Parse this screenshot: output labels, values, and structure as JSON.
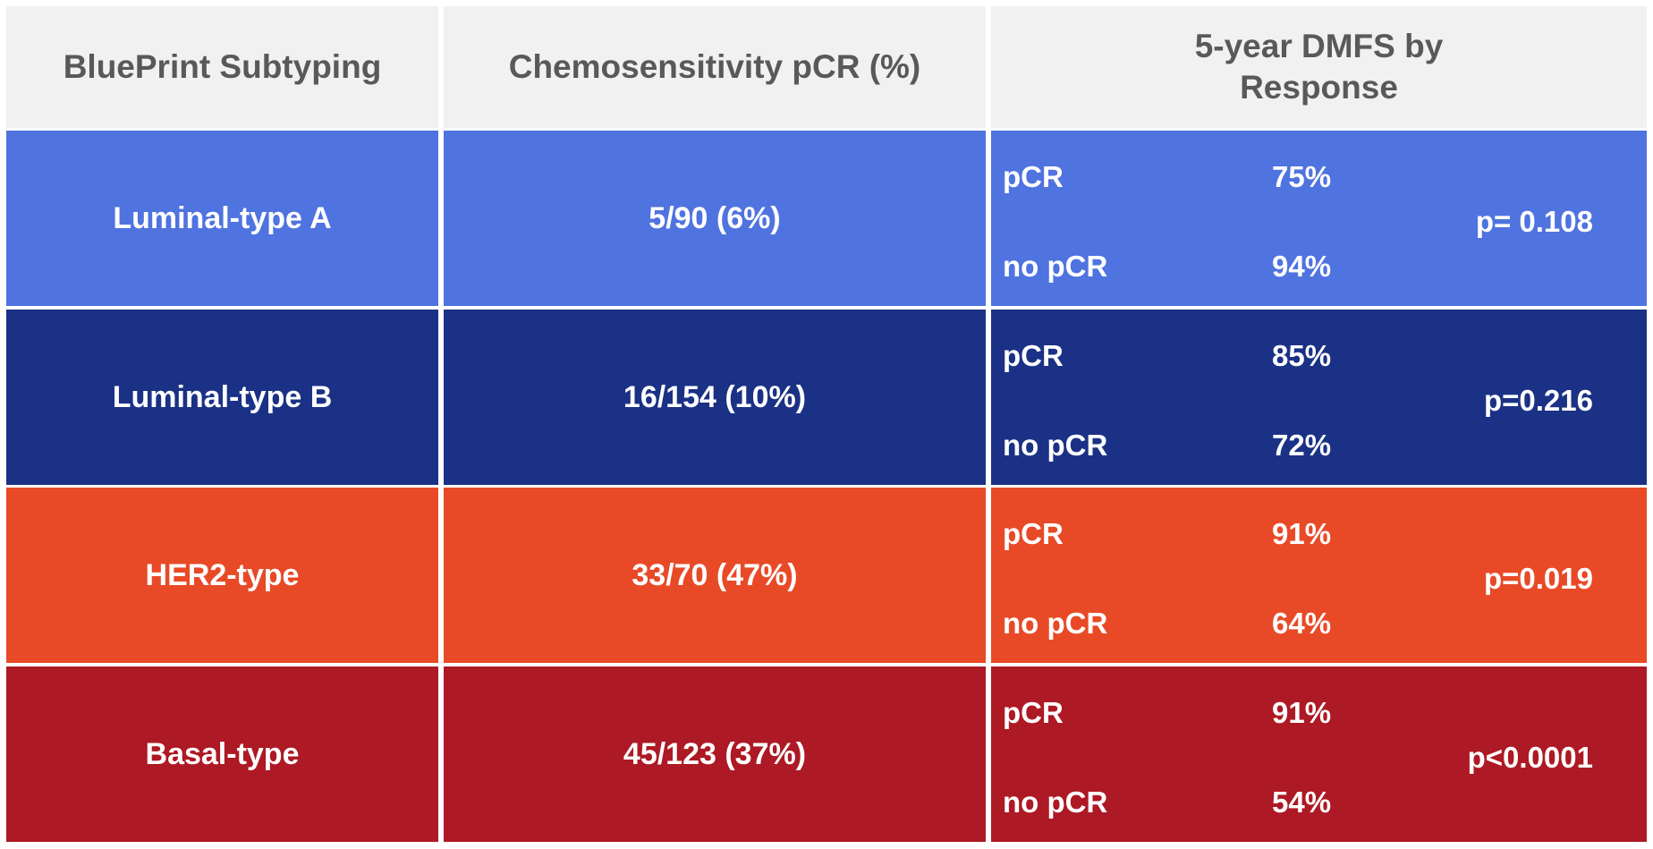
{
  "headers": {
    "col1": "BluePrint Subtyping",
    "col2": "Chemosensitivity pCR (%)",
    "col3_line1": "5-year DMFS by",
    "col3_line2": "Response"
  },
  "rows": [
    {
      "subtype": "Luminal-type A",
      "pcr": "5/90 (6%)",
      "resp1_label": "pCR",
      "resp1_value": "75%",
      "resp2_label": "no pCR",
      "resp2_value": "94%",
      "p": "p= 0.108",
      "color": "#4f73df"
    },
    {
      "subtype": "Luminal-type B",
      "pcr": "16/154 (10%)",
      "resp1_label": "pCR",
      "resp1_value": "85%",
      "resp2_label": "no pCR",
      "resp2_value": "72%",
      "p": "p=0.216",
      "color": "#1a3185"
    },
    {
      "subtype": "HER2-type",
      "pcr": "33/70 (47%)",
      "resp1_label": "pCR",
      "resp1_value": "91%",
      "resp2_label": "no pCR",
      "resp2_value": "64%",
      "p": "p=0.019",
      "color": "#e84a27"
    },
    {
      "subtype": "Basal-type",
      "pcr": "45/123 (37%)",
      "resp1_label": "pCR",
      "resp1_value": "91%",
      "resp2_label": "no pCR",
      "resp2_value": "54%",
      "p": "p<0.0001",
      "color": "#ad1924"
    }
  ]
}
